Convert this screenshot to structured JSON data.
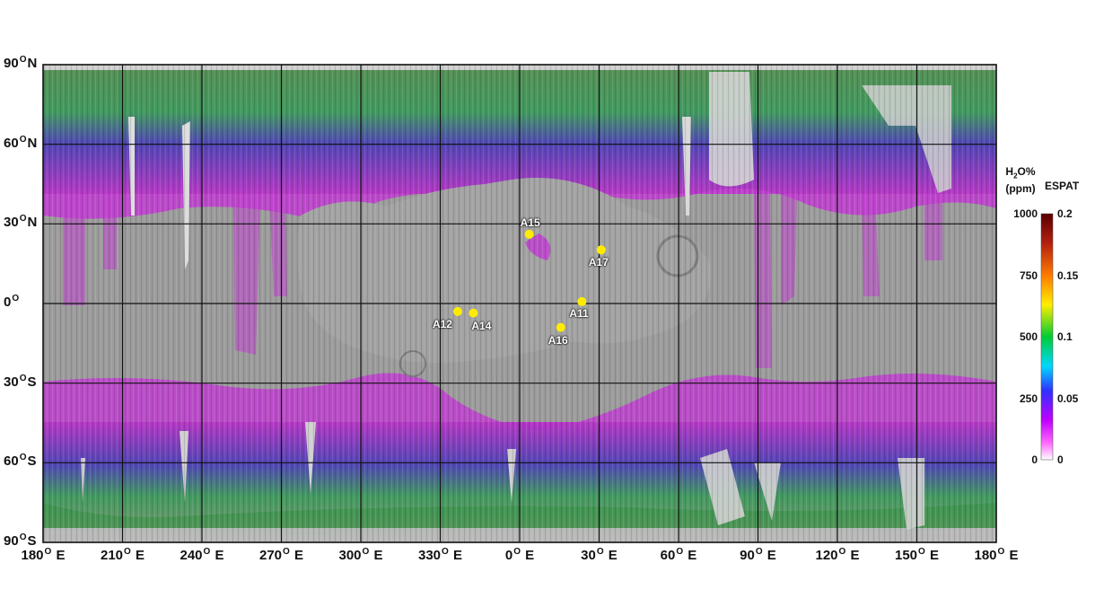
{
  "map": {
    "lat_labels": [
      {
        "deg": "90",
        "hemi": "N"
      },
      {
        "deg": "60",
        "hemi": "N"
      },
      {
        "deg": "30",
        "hemi": "N"
      },
      {
        "deg": "0",
        "hemi": ""
      },
      {
        "deg": "30",
        "hemi": "S"
      },
      {
        "deg": "60",
        "hemi": "S"
      },
      {
        "deg": "90",
        "hemi": "S"
      }
    ],
    "lon_labels": [
      {
        "deg": "180",
        "hemi": "E"
      },
      {
        "deg": "210",
        "hemi": "E"
      },
      {
        "deg": "240",
        "hemi": "E"
      },
      {
        "deg": "270",
        "hemi": "E"
      },
      {
        "deg": "300",
        "hemi": "E"
      },
      {
        "deg": "330",
        "hemi": "E"
      },
      {
        "deg": "0",
        "hemi": "E"
      },
      {
        "deg": "30",
        "hemi": "E"
      },
      {
        "deg": "60",
        "hemi": "E"
      },
      {
        "deg": "90",
        "hemi": "E"
      },
      {
        "deg": "120",
        "hemi": "E"
      },
      {
        "deg": "150",
        "hemi": "E"
      },
      {
        "deg": "180",
        "hemi": "E"
      }
    ],
    "landing_sites": [
      {
        "name": "A15",
        "lon": 3.6,
        "lat": 26.1
      },
      {
        "name": "A17",
        "lon": 30.8,
        "lat": 20.2
      },
      {
        "name": "A11",
        "lon": 23.5,
        "lat": 0.7
      },
      {
        "name": "A12",
        "lon": -23.4,
        "lat": -3.0
      },
      {
        "name": "A14",
        "lon": -17.5,
        "lat": -3.6
      },
      {
        "name": "A16",
        "lon": 15.5,
        "lat": -9.0
      }
    ],
    "site_color": "#ffec00",
    "grid_color": "#111111",
    "base_color": "#9c9c9c"
  },
  "colorbar": {
    "left_title_line1": "H",
    "left_title_sub": "2",
    "left_title_rest": "O%",
    "left_title_line2": "(ppm)",
    "right_title": "ESPAT",
    "left_ticks": [
      "1000",
      "750",
      "500",
      "250",
      "0"
    ],
    "right_ticks": [
      "0.2",
      "0.15",
      "0.1",
      "0.05",
      "0"
    ],
    "gradient_colors": [
      "#5a0000",
      "#b32010",
      "#ff7a00",
      "#ffee00",
      "#00cc33",
      "#00d8ff",
      "#3030ff",
      "#c000ff",
      "#ff66ff",
      "#ffffff"
    ]
  }
}
